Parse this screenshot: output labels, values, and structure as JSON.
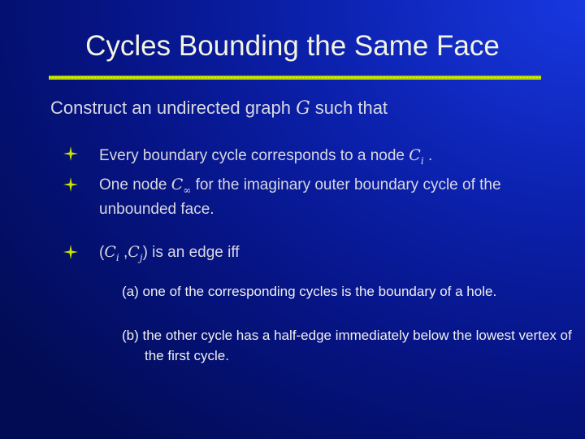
{
  "title": "Cycles Bounding the Same Face",
  "intro": {
    "segments": [
      {
        "text": "Construct an undirected graph "
      },
      {
        "math": "G"
      },
      {
        "text": " such that"
      }
    ]
  },
  "bullets": [
    {
      "segments": [
        {
          "text": "Every boundary cycle corresponds to a node "
        },
        {
          "math": "C",
          "sub": "i"
        },
        {
          "text": " ."
        }
      ]
    },
    {
      "segments": [
        {
          "text": "One node "
        },
        {
          "math": "C",
          "sub": "∞"
        },
        {
          "text": " for the imaginary outer boundary cycle of the unbounded face."
        }
      ]
    },
    {
      "segments": [
        {
          "text": "("
        },
        {
          "math": "C",
          "sub": "i"
        },
        {
          "text": " ,"
        },
        {
          "math": "C",
          "sub": "j"
        },
        {
          "text": ")"
        },
        {
          "text": " is an edge iff"
        }
      ]
    }
  ],
  "subitems": [
    "(a) one of the corresponding cycles is the boundary of a hole.",
    "(b) the other cycle has a half-edge immediately below the lowest vertex of the first cycle."
  ]
}
